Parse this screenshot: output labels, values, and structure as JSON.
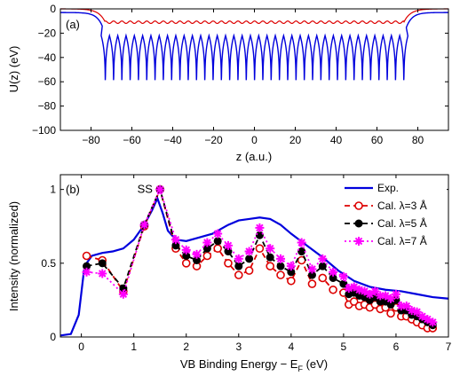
{
  "chart_data": [
    {
      "type": "line",
      "panel_label": "(a)",
      "xlabel": "z (a.u.)",
      "ylabel": "U(z) (eV)",
      "xlim": [
        -95,
        95
      ],
      "ylim": [
        -100,
        0
      ],
      "xticks": [
        "−80",
        "−60",
        "−40",
        "−20",
        "0",
        "20",
        "40",
        "60",
        "80"
      ],
      "xtick_values": [
        -80,
        -60,
        -40,
        -20,
        0,
        20,
        40,
        60,
        80
      ],
      "yticks": [
        "0",
        "−20",
        "−40",
        "−60",
        "−80",
        "−100"
      ],
      "ytick_values": [
        0,
        -20,
        -40,
        -60,
        -80,
        -100
      ],
      "series": [
        {
          "color": "#0000dd",
          "description": "blue periodic well potential",
          "well_count": 37,
          "well_start_z": -73,
          "well_spacing": 4.06,
          "well_min": -91,
          "barrier_top": -22,
          "outer_plateau": -3
        },
        {
          "color": "#dd0000",
          "description": "red averaged potential",
          "mean_value": -11,
          "ripple_amplitude": 1
        }
      ]
    },
    {
      "type": "line",
      "panel_label": "(b)",
      "xlabel": "VB Binding Energy − E",
      "xlabel_sub": "F",
      "xlabel_tail": " (eV)",
      "ylabel": "Intensity (normalized)",
      "xlim": [
        -0.4,
        7
      ],
      "ylim": [
        0,
        1.1
      ],
      "xticks": [
        "0",
        "1",
        "2",
        "3",
        "4",
        "5",
        "6",
        "7"
      ],
      "xtick_values": [
        0,
        1,
        2,
        3,
        4,
        5,
        6,
        7
      ],
      "yticks": [
        "0",
        "0.5",
        "1"
      ],
      "ytick_values": [
        0,
        0.5,
        1
      ],
      "annotation": {
        "text": "SS",
        "x": 1.45,
        "y": 1.0
      },
      "series": [
        {
          "name": "Exp.",
          "color": "#0000dd",
          "style": "solid",
          "x": [
            -0.4,
            -0.2,
            -0.05,
            0.0,
            0.05,
            0.1,
            0.2,
            0.4,
            0.6,
            0.8,
            1.0,
            1.2,
            1.35,
            1.45,
            1.55,
            1.65,
            1.8,
            2.0,
            2.2,
            2.5,
            2.8,
            3.0,
            3.2,
            3.4,
            3.6,
            3.8,
            4.0,
            4.3,
            4.6,
            4.9,
            5.2,
            5.5,
            5.8,
            6.1,
            6.4,
            6.7,
            7.0
          ],
          "y": [
            0.01,
            0.02,
            0.15,
            0.3,
            0.45,
            0.5,
            0.55,
            0.57,
            0.58,
            0.6,
            0.66,
            0.76,
            0.86,
            0.94,
            0.84,
            0.72,
            0.66,
            0.65,
            0.67,
            0.7,
            0.76,
            0.79,
            0.8,
            0.81,
            0.8,
            0.76,
            0.7,
            0.62,
            0.54,
            0.45,
            0.38,
            0.34,
            0.32,
            0.31,
            0.29,
            0.27,
            0.26
          ]
        },
        {
          "name": "Cal. λ=3 Å",
          "color": "#dd0000",
          "style": "dashed",
          "marker": "open-circle",
          "x": [
            0.1,
            0.4,
            0.8,
            1.2,
            1.5,
            1.8,
            2.0,
            2.2,
            2.4,
            2.6,
            2.8,
            3.0,
            3.2,
            3.4,
            3.6,
            3.8,
            4.0,
            4.2,
            4.4,
            4.6,
            4.8,
            5.0,
            5.1,
            5.2,
            5.3,
            5.4,
            5.5,
            5.6,
            5.7,
            5.8,
            5.9,
            6.0,
            6.1,
            6.2,
            6.3,
            6.4,
            6.5,
            6.6,
            6.7
          ],
          "y": [
            0.55,
            0.52,
            0.31,
            0.75,
            1.0,
            0.6,
            0.5,
            0.48,
            0.55,
            0.6,
            0.5,
            0.42,
            0.45,
            0.6,
            0.48,
            0.42,
            0.38,
            0.52,
            0.36,
            0.4,
            0.32,
            0.3,
            0.22,
            0.24,
            0.21,
            0.22,
            0.2,
            0.22,
            0.19,
            0.2,
            0.16,
            0.2,
            0.14,
            0.14,
            0.12,
            0.1,
            0.08,
            0.06,
            0.06
          ]
        },
        {
          "name": "Cal. λ=5 Å",
          "color": "#000000",
          "style": "dashed",
          "marker": "filled-circle",
          "x": [
            0.1,
            0.4,
            0.8,
            1.2,
            1.5,
            1.8,
            2.0,
            2.2,
            2.4,
            2.6,
            2.8,
            3.0,
            3.2,
            3.4,
            3.6,
            3.8,
            4.0,
            4.2,
            4.4,
            4.6,
            4.8,
            5.0,
            5.1,
            5.2,
            5.3,
            5.4,
            5.5,
            5.6,
            5.7,
            5.8,
            5.9,
            6.0,
            6.1,
            6.2,
            6.3,
            6.4,
            6.5,
            6.6,
            6.7
          ],
          "y": [
            0.48,
            0.5,
            0.33,
            0.76,
            1.0,
            0.62,
            0.55,
            0.52,
            0.6,
            0.65,
            0.58,
            0.48,
            0.53,
            0.69,
            0.54,
            0.48,
            0.44,
            0.58,
            0.42,
            0.48,
            0.4,
            0.36,
            0.29,
            0.3,
            0.28,
            0.27,
            0.25,
            0.27,
            0.24,
            0.24,
            0.22,
            0.25,
            0.18,
            0.18,
            0.15,
            0.14,
            0.12,
            0.1,
            0.08
          ]
        },
        {
          "name": "Cal. λ=7 Å",
          "color": "#ff00ff",
          "style": "dotted",
          "marker": "asterisk",
          "x": [
            0.1,
            0.4,
            0.8,
            1.2,
            1.5,
            1.8,
            2.0,
            2.2,
            2.4,
            2.6,
            2.8,
            3.0,
            3.2,
            3.4,
            3.6,
            3.8,
            4.0,
            4.2,
            4.4,
            4.6,
            4.8,
            5.0,
            5.1,
            5.2,
            5.3,
            5.4,
            5.5,
            5.6,
            5.7,
            5.8,
            5.9,
            6.0,
            6.1,
            6.2,
            6.3,
            6.4,
            6.5,
            6.6,
            6.7
          ],
          "y": [
            0.44,
            0.43,
            0.29,
            0.76,
            1.0,
            0.66,
            0.59,
            0.56,
            0.64,
            0.7,
            0.62,
            0.53,
            0.58,
            0.74,
            0.6,
            0.53,
            0.48,
            0.64,
            0.46,
            0.53,
            0.44,
            0.41,
            0.33,
            0.34,
            0.32,
            0.31,
            0.29,
            0.31,
            0.28,
            0.28,
            0.26,
            0.29,
            0.21,
            0.21,
            0.18,
            0.17,
            0.14,
            0.12,
            0.1
          ]
        }
      ]
    }
  ]
}
